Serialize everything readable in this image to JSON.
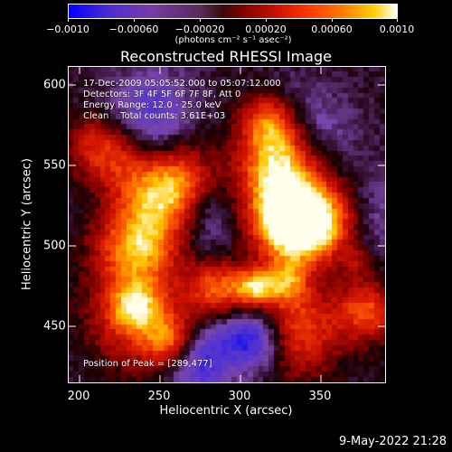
{
  "colorbar": {
    "labels": [
      "−0.0010",
      "−0.00060",
      "−0.00020",
      "0.00020",
      "0.00060",
      "0.0010"
    ],
    "unit": "(photons cm⁻² s⁻¹ asec⁻²)"
  },
  "title": "Reconstructed RHESSI Image",
  "info": {
    "time": "17-Dec-2009 05:05:52.000 to 05:07:12.000",
    "detectors": "Detectors: 3F 4F 5F 6F 7F 8F, Att 0",
    "energy": "Energy Range: 12.0 - 25.0 keV",
    "clean": "Clean    Total counts: 3.61E+03",
    "peak": "Position of Peak = [289,477]"
  },
  "axes": {
    "xlabel": "Heliocentric X (arcsec)",
    "ylabel": "Heliocentric Y (arcsec)",
    "xticks": [
      "200",
      "250",
      "300",
      "350"
    ],
    "yticks": [
      "600",
      "550",
      "500",
      "450"
    ]
  },
  "timestamp": "9-May-2022 21:28"
}
